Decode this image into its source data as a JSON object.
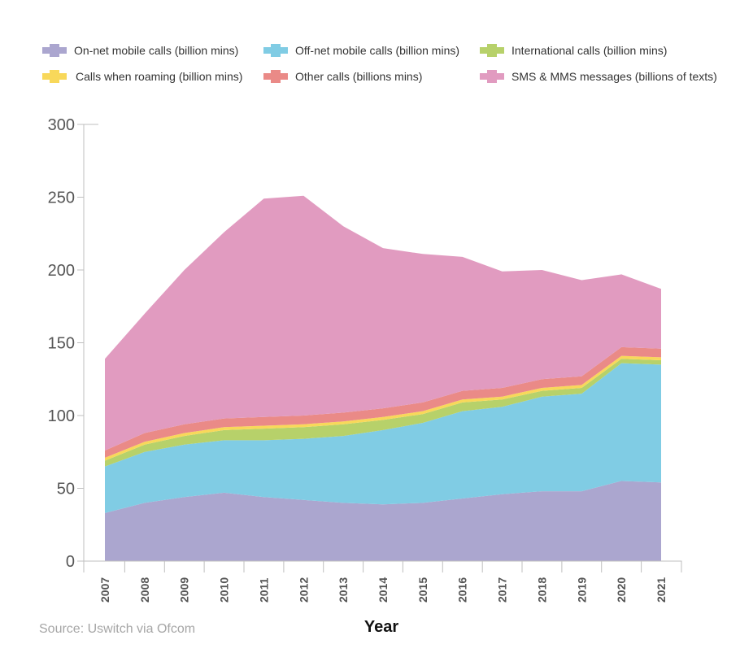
{
  "chart_data": {
    "type": "area",
    "stacked": true,
    "categories": [
      "2007",
      "2008",
      "2009",
      "2010",
      "2011",
      "2012",
      "2013",
      "2014",
      "2015",
      "2016",
      "2017",
      "2018",
      "2019",
      "2020",
      "2021"
    ],
    "series": [
      {
        "name": "On-net mobile calls (billion mins)",
        "color": "#aba6cf",
        "values": [
          33,
          40,
          44,
          47,
          44,
          42,
          40,
          39,
          40,
          43,
          46,
          48,
          48,
          55,
          54
        ]
      },
      {
        "name": "Off-net mobile calls (billion mins)",
        "color": "#80cce4",
        "values": [
          32,
          35,
          36,
          36,
          39,
          42,
          46,
          51,
          55,
          60,
          60,
          65,
          67,
          81,
          81
        ]
      },
      {
        "name": "International calls (billion mins)",
        "color": "#b7d16a",
        "values": [
          4,
          5,
          6,
          7,
          8,
          8,
          8,
          7,
          6,
          6,
          5,
          4,
          4,
          3,
          3
        ]
      },
      {
        "name": "Calls when roaming (billion mins)",
        "color": "#f8d85a",
        "values": [
          2,
          2,
          2,
          2,
          2,
          2,
          2,
          2,
          2,
          2,
          2,
          2,
          2,
          2,
          2
        ]
      },
      {
        "name": "Other calls (billions mins)",
        "color": "#ea8a87",
        "values": [
          5,
          6,
          6,
          6,
          6,
          6,
          6,
          6,
          6,
          6,
          6,
          6,
          6,
          6,
          6
        ]
      },
      {
        "name": "SMS & MMS messages (billions of texts)",
        "color": "#e19bc0",
        "values": [
          63,
          82,
          106,
          128,
          150,
          151,
          128,
          110,
          102,
          92,
          80,
          75,
          66,
          50,
          41
        ]
      }
    ],
    "xlabel": "Year",
    "ylabel": "",
    "ylim": [
      0,
      300
    ],
    "yticks": [
      0,
      50,
      100,
      150,
      200,
      250,
      300
    ],
    "legend_position": "top",
    "grid": false
  },
  "source": "Source: Uswitch via Ofcom"
}
